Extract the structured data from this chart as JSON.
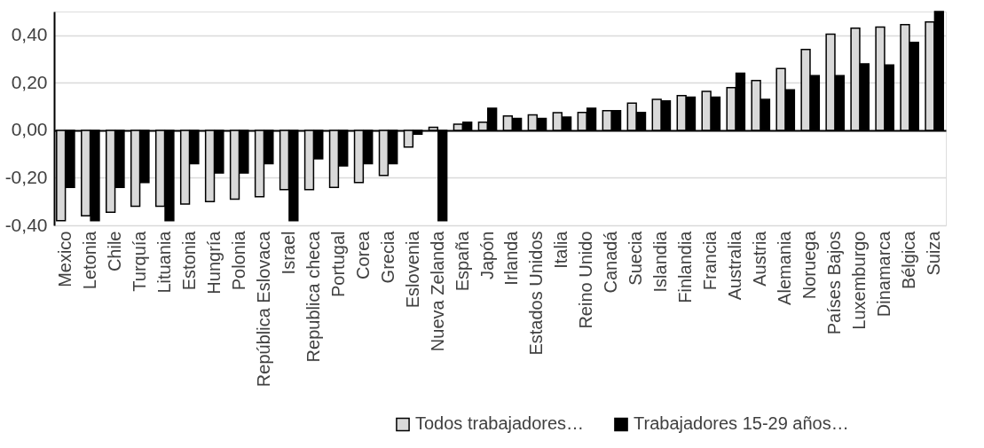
{
  "chart_data": {
    "type": "bar",
    "categories": [
      "Mexico",
      "Letonia",
      "Chile",
      "Turquía",
      "Lituania",
      "Estonia",
      "Hungría",
      "Polonia",
      "República Eslovaca",
      "Israel",
      "Republica checa",
      "Portugal",
      "Corea",
      "Grecia",
      "Eslovenia",
      "Nueva Zelanda",
      "España",
      "Japón",
      "Irlanda",
      "Estados Unidos",
      "Italia",
      "Reino Unido",
      "Canadá",
      "Suecia",
      "Islandia",
      "Finlandia",
      "Francia",
      "Australia",
      "Austria",
      "Alemania",
      "Noruega",
      "Países Bajos",
      "Luxemburgo",
      "Dinamarca",
      "Bélgica",
      "Suiza"
    ],
    "series": [
      {
        "name": "Todos trabajadores…",
        "color": "#d9d9d9",
        "values": [
          -0.38,
          -0.36,
          -0.345,
          -0.32,
          -0.32,
          -0.31,
          -0.3,
          -0.29,
          -0.28,
          -0.25,
          -0.25,
          -0.24,
          -0.22,
          -0.19,
          -0.07,
          0.013,
          0.026,
          0.034,
          0.06,
          0.065,
          0.074,
          0.075,
          0.083,
          0.114,
          0.13,
          0.146,
          0.164,
          0.18,
          0.21,
          0.26,
          0.34,
          0.405,
          0.43,
          0.435,
          0.445,
          0.456
        ]
      },
      {
        "name": "Trabajadores 15-29 años…",
        "color": "#000000",
        "values": [
          -0.24,
          -0.38,
          -0.24,
          -0.22,
          -0.38,
          -0.14,
          -0.18,
          -0.18,
          -0.14,
          -0.38,
          -0.12,
          -0.15,
          -0.14,
          -0.14,
          -0.016,
          -0.38,
          0.034,
          0.093,
          0.05,
          0.05,
          0.056,
          0.093,
          0.083,
          0.075,
          0.124,
          0.14,
          0.14,
          0.24,
          0.13,
          0.17,
          0.23,
          0.23,
          0.28,
          0.275,
          0.37,
          0.5
        ]
      }
    ],
    "ylim": [
      -0.4,
      0.5
    ],
    "yticks": [
      {
        "value": -0.4,
        "label": "-0,40"
      },
      {
        "value": -0.2,
        "label": "-0,20"
      },
      {
        "value": 0,
        "label": "0,00"
      },
      {
        "value": 0.2,
        "label": "0,20"
      },
      {
        "value": 0.4,
        "label": "0,40"
      }
    ],
    "grid": "y",
    "legend": "bottom right"
  }
}
